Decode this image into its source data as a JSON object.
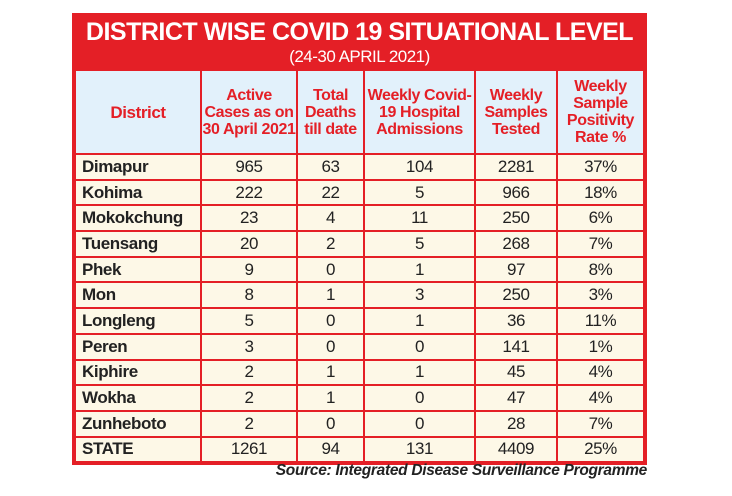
{
  "chart_data": {
    "type": "table",
    "title": "DISTRICT WISE COVID 19 SITUATIONAL LEVEL",
    "subtitle": "(24-30 APRIL 2021)",
    "columns": [
      "District",
      "Active Cases as on 30 April 2021",
      "Total Deaths till date",
      "Weekly Covid-19 Hospital Admissions",
      "Weekly Samples Tested",
      "Weekly Sample Positivity Rate %"
    ],
    "rows": [
      [
        "Dimapur",
        "965",
        "63",
        "104",
        "2281",
        "37%"
      ],
      [
        "Kohima",
        "222",
        "22",
        "5",
        "966",
        "18%"
      ],
      [
        "Mokokchung",
        "23",
        "4",
        "11",
        "250",
        "6%"
      ],
      [
        "Tuensang",
        "20",
        "2",
        "5",
        "268",
        "7%"
      ],
      [
        "Phek",
        "9",
        "0",
        "1",
        "97",
        "8%"
      ],
      [
        "Mon",
        "8",
        "1",
        "3",
        "250",
        "3%"
      ],
      [
        "Longleng",
        "5",
        "0",
        "1",
        "36",
        "11%"
      ],
      [
        "Peren",
        "3",
        "0",
        "0",
        "141",
        "1%"
      ],
      [
        "Kiphire",
        "2",
        "1",
        "1",
        "45",
        "4%"
      ],
      [
        "Wokha",
        "2",
        "1",
        "0",
        "47",
        "4%"
      ],
      [
        "Zunheboto",
        "2",
        "0",
        "0",
        "28",
        "7%"
      ],
      [
        "STATE",
        "1261",
        "94",
        "131",
        "4409",
        "25%"
      ]
    ],
    "source": "Source: Integrated Disease Surveillance Programme"
  },
  "colors": {
    "accent_red": "#e41f26",
    "header_bg": "#e2f1fb",
    "body_bg": "#fdf8e7"
  }
}
